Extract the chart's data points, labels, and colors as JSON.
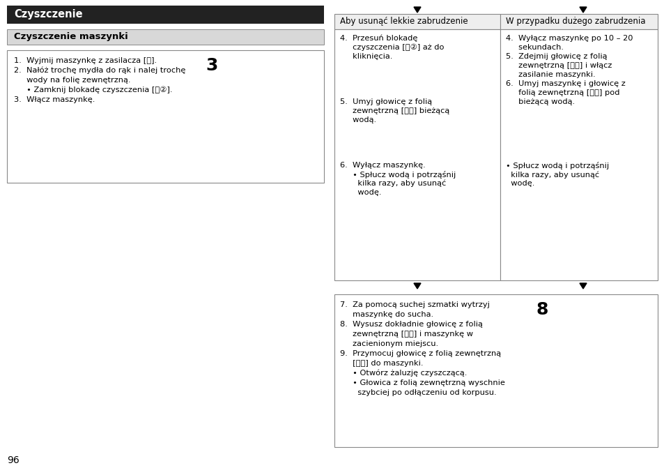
{
  "page_bg": "#ffffff",
  "title_bg": "#222222",
  "title_text": "Czyszczenie",
  "title_color": "#ffffff",
  "subtitle_bg": "#d8d8d8",
  "subtitle_text": "Czyszczenie maszynki",
  "subtitle_color": "#000000",
  "page_number": "96",
  "left_box_lines": [
    "1.  Wyjmij maszynkę z zasilacza [Ⓑ].",
    "2.  Nałóż trochę mydła do rąk i nalej trochę",
    "     wody na folię zewnętrzną.",
    "     • Zamknij blokadę czyszczenia [Ⓐ②].",
    "3.  Włącz maszynkę."
  ],
  "left_step_num": "3",
  "col1_header": "Aby usunąć lekkie zabrudzenie",
  "col2_header": "W przypadku dużego zabrudzenia",
  "col1_lines": [
    "4.  Przesuń blokadę",
    "     czyszczenia [Ⓐ②] aż do",
    "     kliknięcia.",
    "",
    "",
    "",
    "",
    "5.  Umyj głowicę z folią",
    "     zewnętrzną [Ⓐⓞ] bieżącą",
    "     wodą.",
    "",
    "",
    "",
    "",
    "6.  Wyłącz maszynkę.",
    "     • Spłucz wodą i potrząśnij",
    "       kilka razy, aby usunąć",
    "       wodę."
  ],
  "col2_lines": [
    "4.  Wyłącz maszynkę po 10 – 20",
    "     sekundach.",
    "5.  Zdejmij głowicę z folią",
    "     zewnętrzną [Ⓐⓞ] i włącz",
    "     zasilanie maszynki.",
    "6.  Umyj maszynkę i głowicę z",
    "     folią zewnętrzną [Ⓐⓞ] pod",
    "     bieżącą wodą.",
    "",
    "",
    "",
    "",
    "",
    "",
    "• Spłucz wodą i potrząśnij",
    "  kilka razy, aby usunąć",
    "  wodę."
  ],
  "bottom_lines": [
    "7.  Za pomocą suchej szmatki wytrzyj",
    "     maszynkę do sucha.",
    "8.  Wysusz dokładnie głowicę z folią",
    "     zewnętrzną [Ⓐⓞ] i maszynkę w",
    "     zacienionym miejscu.",
    "9.  Przymocuj głowicę z folią zewnętrzną",
    "     [Ⓐⓞ] do maszynki.",
    "     • Otwórz żaluzję czyszczącą.",
    "     • Głowica z folią zewnętrzną wyschnie",
    "       szybciej po odłączeniu od korpusu."
  ],
  "bottom_step_num": "8",
  "border_color": "#888888",
  "header_bg": "#eeeeee",
  "text_fs": 8.2,
  "header_fs": 8.5,
  "title_fs": 10.5,
  "subtitle_fs": 9.5
}
